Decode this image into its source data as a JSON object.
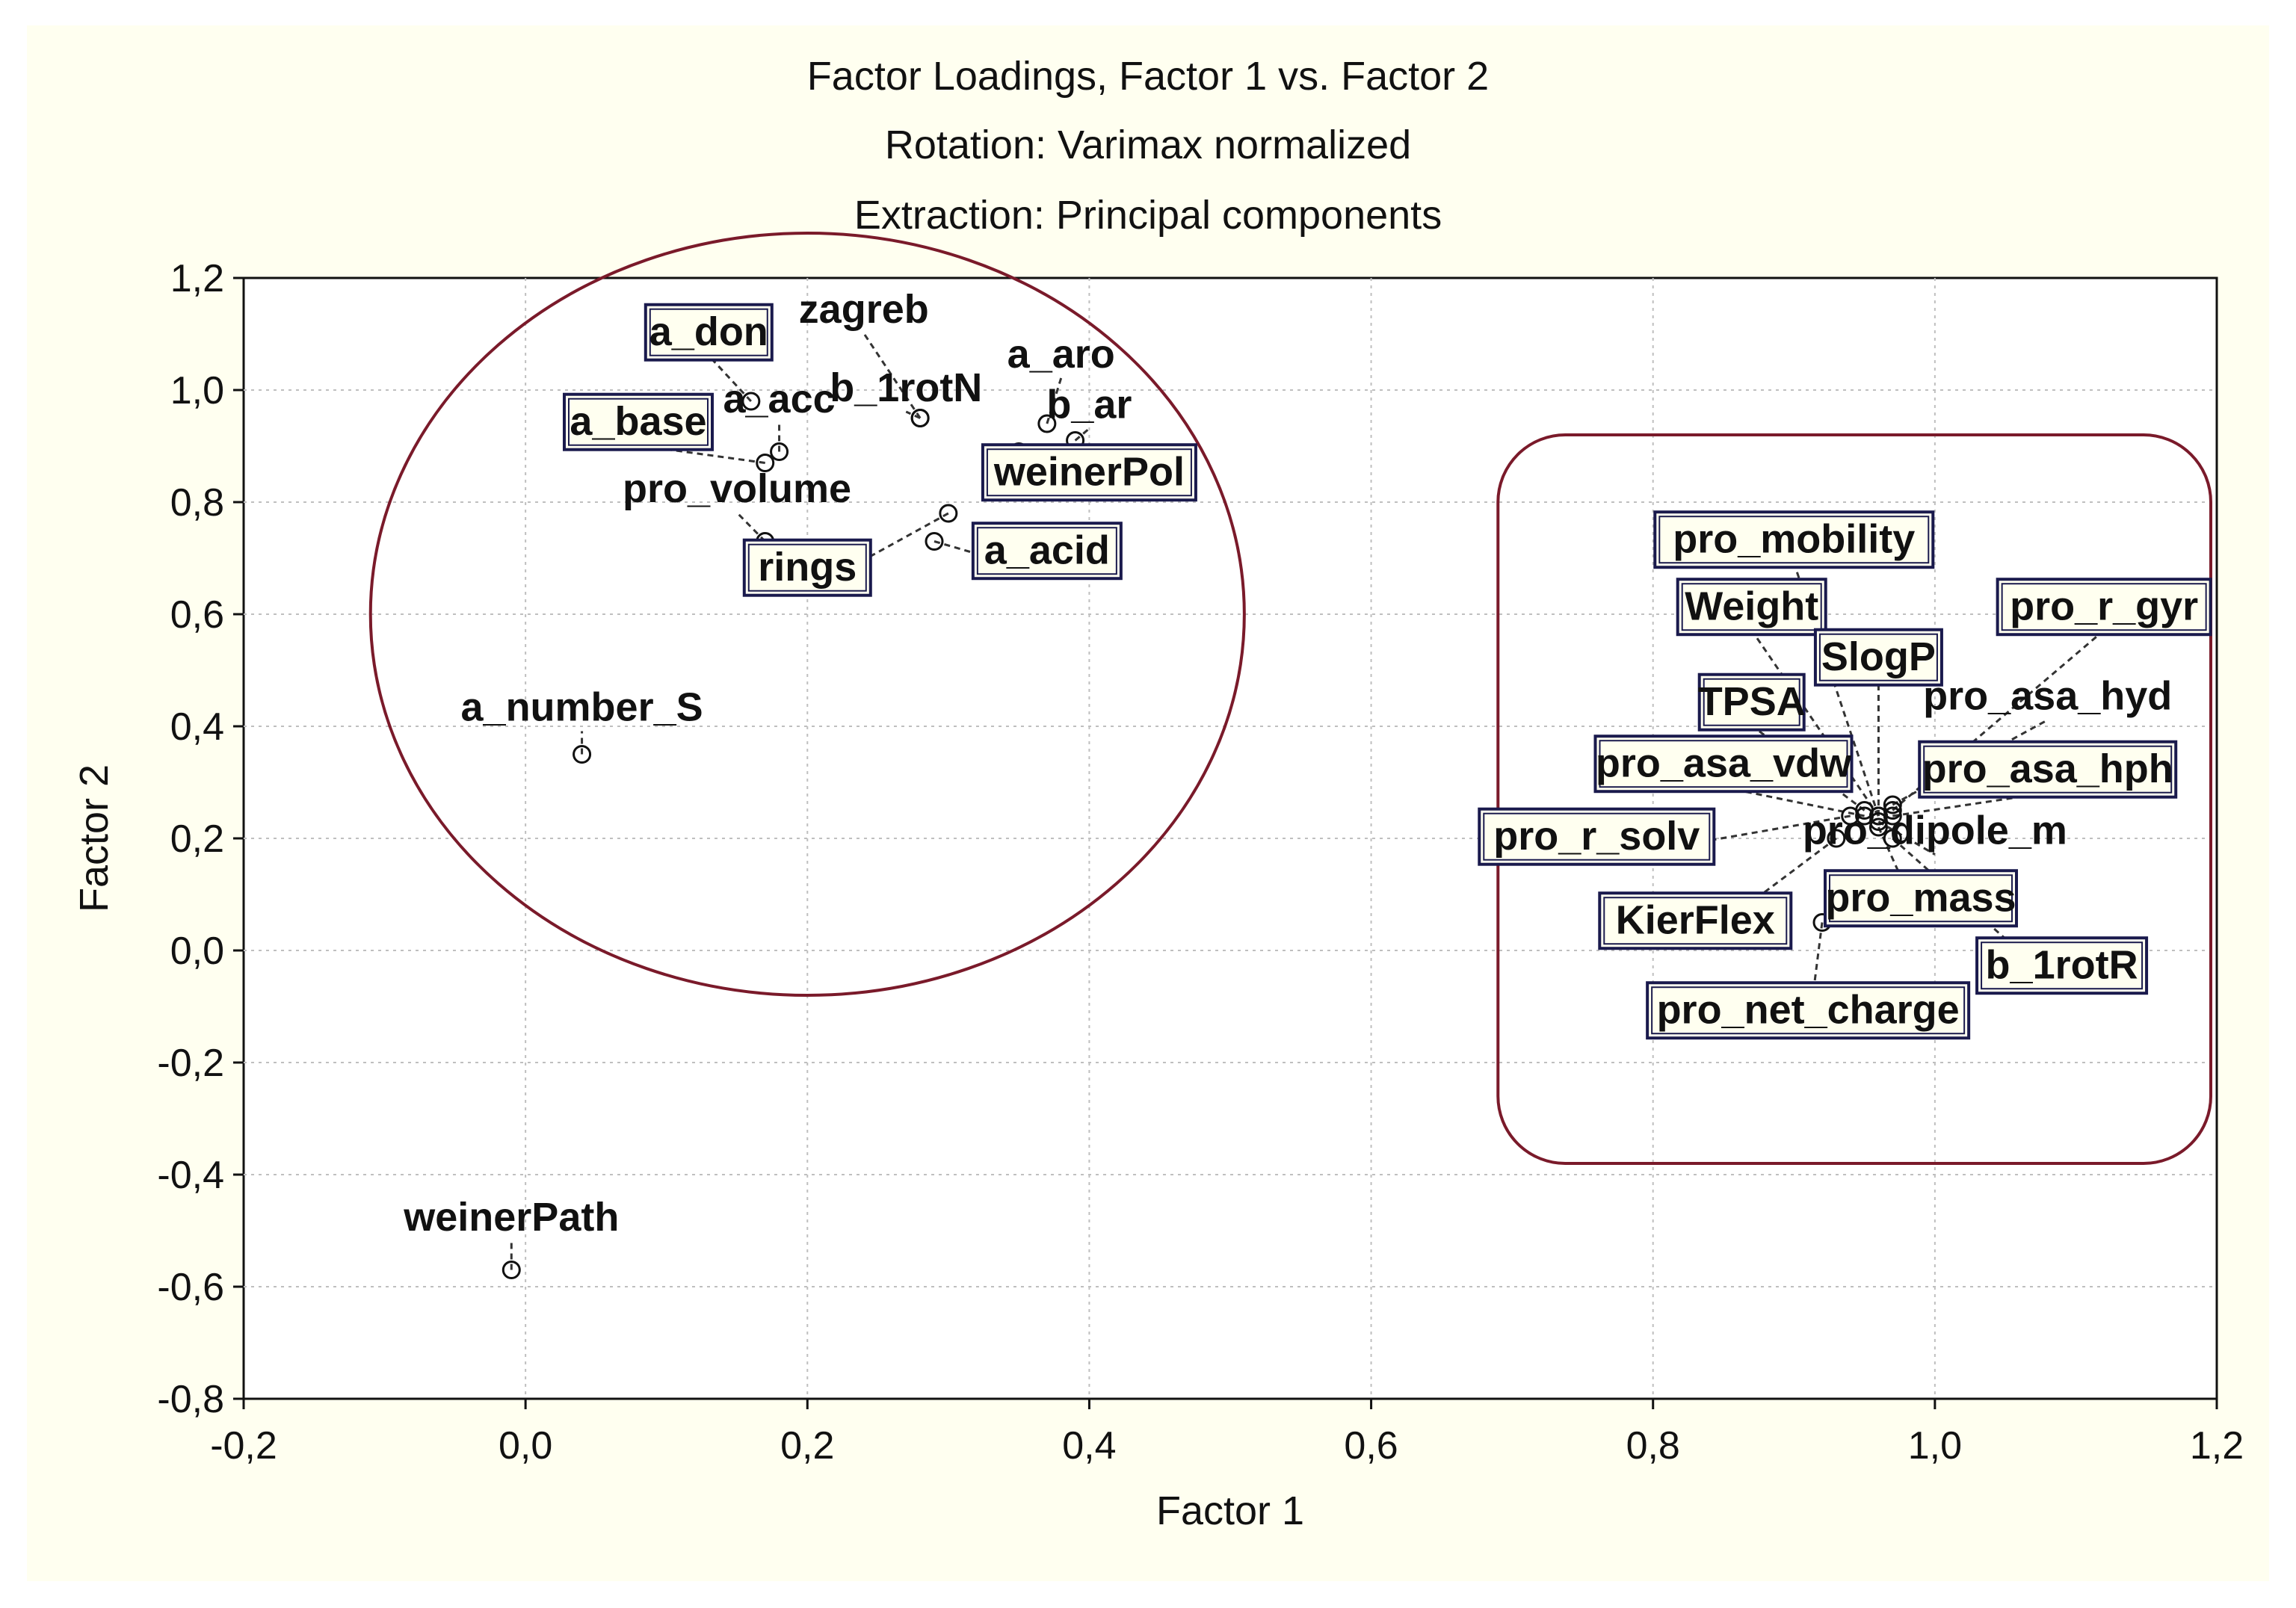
{
  "chart_data": {
    "type": "scatter",
    "title": "Factor Loadings, Factor 1 vs. Factor 2",
    "subtitle_1": "Rotation: Varimax normalized",
    "subtitle_2": "Extraction: Principal components",
    "xlabel": "Factor 1",
    "ylabel": "Factor 2",
    "xlim": [
      -0.2,
      1.2
    ],
    "ylim": [
      -0.8,
      1.2
    ],
    "x_ticks": [
      "-0,2",
      "0,0",
      "0,2",
      "0,4",
      "0,6",
      "0,8",
      "1,0",
      "1,2"
    ],
    "y_ticks": [
      "1,2",
      "1,0",
      "0,8",
      "0,6",
      "0,4",
      "0,2",
      "0,0",
      "-0,2",
      "-0,4",
      "-0,6",
      "-0,8"
    ],
    "grid": true,
    "groups": [
      {
        "shape": "ellipse",
        "center": [
          0.2,
          0.6
        ],
        "radius": [
          0.31,
          0.68
        ],
        "color": "#7a1a2a"
      },
      {
        "shape": "rounded-rectangle",
        "x_range": [
          0.69,
          1.2
        ],
        "y_range": [
          -0.38,
          0.92
        ],
        "color": "#7a1a2a"
      }
    ],
    "points": [
      {
        "name": "zagreb",
        "x": 0.28,
        "y": 0.95,
        "boxed": false,
        "lx": 0.24,
        "ly": 1.12
      },
      {
        "name": "a_don",
        "x": 0.16,
        "y": 0.98,
        "boxed": true,
        "lx": 0.13,
        "ly": 1.08
      },
      {
        "name": "a_aro",
        "x": 0.37,
        "y": 0.94,
        "boxed": false,
        "lx": 0.38,
        "ly": 1.04
      },
      {
        "name": "a_base",
        "x": 0.17,
        "y": 0.87,
        "boxed": true,
        "lx": 0.08,
        "ly": 0.92
      },
      {
        "name": "a_acc",
        "x": 0.18,
        "y": 0.89,
        "boxed": false,
        "lx": 0.18,
        "ly": 0.96
      },
      {
        "name": "b_1rotN",
        "x": 0.28,
        "y": 0.95,
        "boxed": false,
        "lx": 0.27,
        "ly": 0.98
      },
      {
        "name": "b_ar",
        "x": 0.39,
        "y": 0.91,
        "boxed": false,
        "lx": 0.4,
        "ly": 0.95
      },
      {
        "name": "weinerPol",
        "x": 0.35,
        "y": 0.89,
        "boxed": true,
        "lx": 0.4,
        "ly": 0.83
      },
      {
        "name": "pro_volume",
        "x": 0.17,
        "y": 0.73,
        "boxed": false,
        "lx": 0.15,
        "ly": 0.8
      },
      {
        "name": "rings",
        "x": 0.3,
        "y": 0.78,
        "boxed": true,
        "lx": 0.2,
        "ly": 0.66
      },
      {
        "name": "a_acid",
        "x": 0.29,
        "y": 0.73,
        "boxed": true,
        "lx": 0.37,
        "ly": 0.69
      },
      {
        "name": "a_number_S",
        "x": 0.04,
        "y": 0.35,
        "boxed": false,
        "lx": 0.04,
        "ly": 0.41
      },
      {
        "name": "weinerPath",
        "x": -0.01,
        "y": -0.57,
        "boxed": false,
        "lx": -0.01,
        "ly": -0.5
      },
      {
        "name": "pro_mobility",
        "x": 0.96,
        "y": 0.24,
        "boxed": true,
        "lx": 0.9,
        "ly": 0.71
      },
      {
        "name": "Weight",
        "x": 0.96,
        "y": 0.24,
        "boxed": true,
        "lx": 0.87,
        "ly": 0.59
      },
      {
        "name": "pro_r_gyr",
        "x": 0.97,
        "y": 0.25,
        "boxed": true,
        "lx": 1.12,
        "ly": 0.59
      },
      {
        "name": "SlogP",
        "x": 0.96,
        "y": 0.24,
        "boxed": true,
        "lx": 0.96,
        "ly": 0.5
      },
      {
        "name": "TPSA",
        "x": 0.95,
        "y": 0.25,
        "boxed": true,
        "lx": 0.87,
        "ly": 0.42
      },
      {
        "name": "pro_asa_hyd",
        "x": 0.97,
        "y": 0.26,
        "boxed": false,
        "lx": 1.08,
        "ly": 0.43
      },
      {
        "name": "pro_asa_vdw",
        "x": 0.95,
        "y": 0.24,
        "boxed": true,
        "lx": 0.85,
        "ly": 0.31
      },
      {
        "name": "pro_asa_hph",
        "x": 0.97,
        "y": 0.24,
        "boxed": true,
        "lx": 1.08,
        "ly": 0.3
      },
      {
        "name": "pro_r_solv",
        "x": 0.94,
        "y": 0.24,
        "boxed": true,
        "lx": 0.76,
        "ly": 0.18
      },
      {
        "name": "pro_dipole_m",
        "x": 0.96,
        "y": 0.23,
        "boxed": false,
        "lx": 1.0,
        "ly": 0.19
      },
      {
        "name": "pro_mass",
        "x": 0.96,
        "y": 0.22,
        "boxed": true,
        "lx": 0.99,
        "ly": 0.07
      },
      {
        "name": "KierFlex",
        "x": 0.93,
        "y": 0.2,
        "boxed": true,
        "lx": 0.83,
        "ly": 0.03
      },
      {
        "name": "b_1rotR",
        "x": 0.97,
        "y": 0.2,
        "boxed": true,
        "lx": 1.09,
        "ly": -0.05
      },
      {
        "name": "pro_net_charge",
        "x": 0.92,
        "y": 0.05,
        "boxed": true,
        "lx": 0.91,
        "ly": -0.13
      }
    ]
  }
}
